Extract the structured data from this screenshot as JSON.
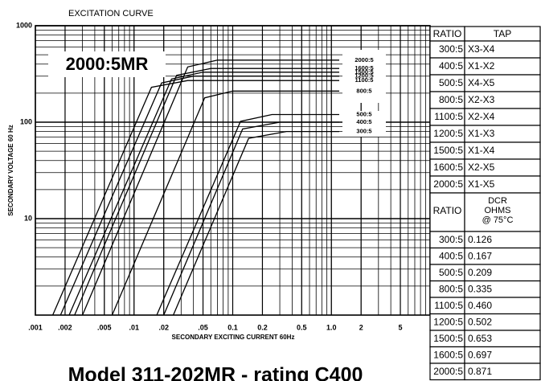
{
  "chart_data": {
    "type": "line",
    "log_x": true,
    "log_y": true,
    "grid": true,
    "title": "EXCITATION CURVE",
    "xlabel": "SECONDARY EXCITING CURRENT 60Hz",
    "ylabel": "SECONDARY VOLTAGE 60 Hz",
    "annotation": "2000:5MR",
    "footer": "Model 311-202MR - rating C400",
    "xlim": [
      0.001,
      10
    ],
    "ylim": [
      1,
      1000
    ],
    "xticks": [
      {
        "value": 0.001,
        "label": ".001"
      },
      {
        "value": 0.002,
        "label": ".002"
      },
      {
        "value": 0.005,
        "label": ".005"
      },
      {
        "value": 0.01,
        "label": ".01"
      },
      {
        "value": 0.02,
        "label": ".02"
      },
      {
        "value": 0.05,
        "label": ".05"
      },
      0.1,
      0.2,
      0.5,
      {
        "value": 1,
        "label": "1.0"
      },
      2,
      5
    ],
    "yticks": [
      10,
      100,
      1000
    ],
    "series": [
      {
        "name": "2000:5",
        "color": "#000",
        "x": [
          0.003,
          0.035,
          0.07,
          1.2
        ],
        "values": [
          1,
          374,
          440,
          440
        ]
      },
      {
        "name": "1600:5",
        "color": "#000",
        "x": [
          0.0025,
          0.027,
          0.06,
          1.2
        ],
        "values": [
          1,
          306,
          360,
          360
        ]
      },
      {
        "name": "1500:5",
        "color": "#000",
        "x": [
          0.0022,
          0.024,
          0.05,
          1.2
        ],
        "values": [
          1,
          280,
          330,
          330
        ]
      },
      {
        "name": "1200:5",
        "color": "#000",
        "x": [
          0.0018,
          0.019,
          0.04,
          1.2
        ],
        "values": [
          1,
          255,
          300,
          300
        ]
      },
      {
        "name": "1100:5",
        "color": "#000",
        "x": [
          0.0015,
          0.015,
          0.035,
          1.2
        ],
        "values": [
          1,
          230,
          270,
          270
        ]
      },
      {
        "name": "800:5",
        "color": "#000",
        "x": [
          0.006,
          0.052,
          0.1,
          1.2
        ],
        "values": [
          1,
          179,
          210,
          210
        ]
      },
      {
        "name": "500:5",
        "color": "#000",
        "x": [
          0.017,
          0.12,
          0.25,
          1.2
        ],
        "values": [
          1,
          102,
          120,
          120
        ]
      },
      {
        "name": "400:5",
        "color": "#000",
        "x": [
          0.02,
          0.126,
          0.3,
          1.2
        ],
        "values": [
          1,
          85,
          100,
          100
        ]
      },
      {
        "name": "300:5",
        "color": "#000",
        "x": [
          0.025,
          0.145,
          0.35,
          1.2
        ],
        "values": [
          1,
          68,
          80,
          80
        ]
      }
    ]
  },
  "tap_table": {
    "header": [
      "RATIO",
      "TAP"
    ],
    "rows": [
      [
        "300:5",
        "X3-X4"
      ],
      [
        "400:5",
        "X1-X2"
      ],
      [
        "500:5",
        "X4-X5"
      ],
      [
        "800:5",
        "X2-X3"
      ],
      [
        "1100:5",
        "X2-X4"
      ],
      [
        "1200:5",
        "X1-X3"
      ],
      [
        "1500:5",
        "X1-X4"
      ],
      [
        "1600:5",
        "X2-X5"
      ],
      [
        "2000:5",
        "X1-X5"
      ]
    ]
  },
  "dcr_table": {
    "header": [
      "RATIO",
      "DCR",
      "OHMS",
      "@ 75°C"
    ],
    "rows": [
      [
        "300:5",
        "0.126"
      ],
      [
        "400:5",
        "0.167"
      ],
      [
        "500:5",
        "0.209"
      ],
      [
        "800:5",
        "0.335"
      ],
      [
        "1100:5",
        "0.460"
      ],
      [
        "1200:5",
        "0.502"
      ],
      [
        "1500:5",
        "0.653"
      ],
      [
        "1600:5",
        "0.697"
      ],
      [
        "2000:5",
        "0.871"
      ]
    ]
  }
}
